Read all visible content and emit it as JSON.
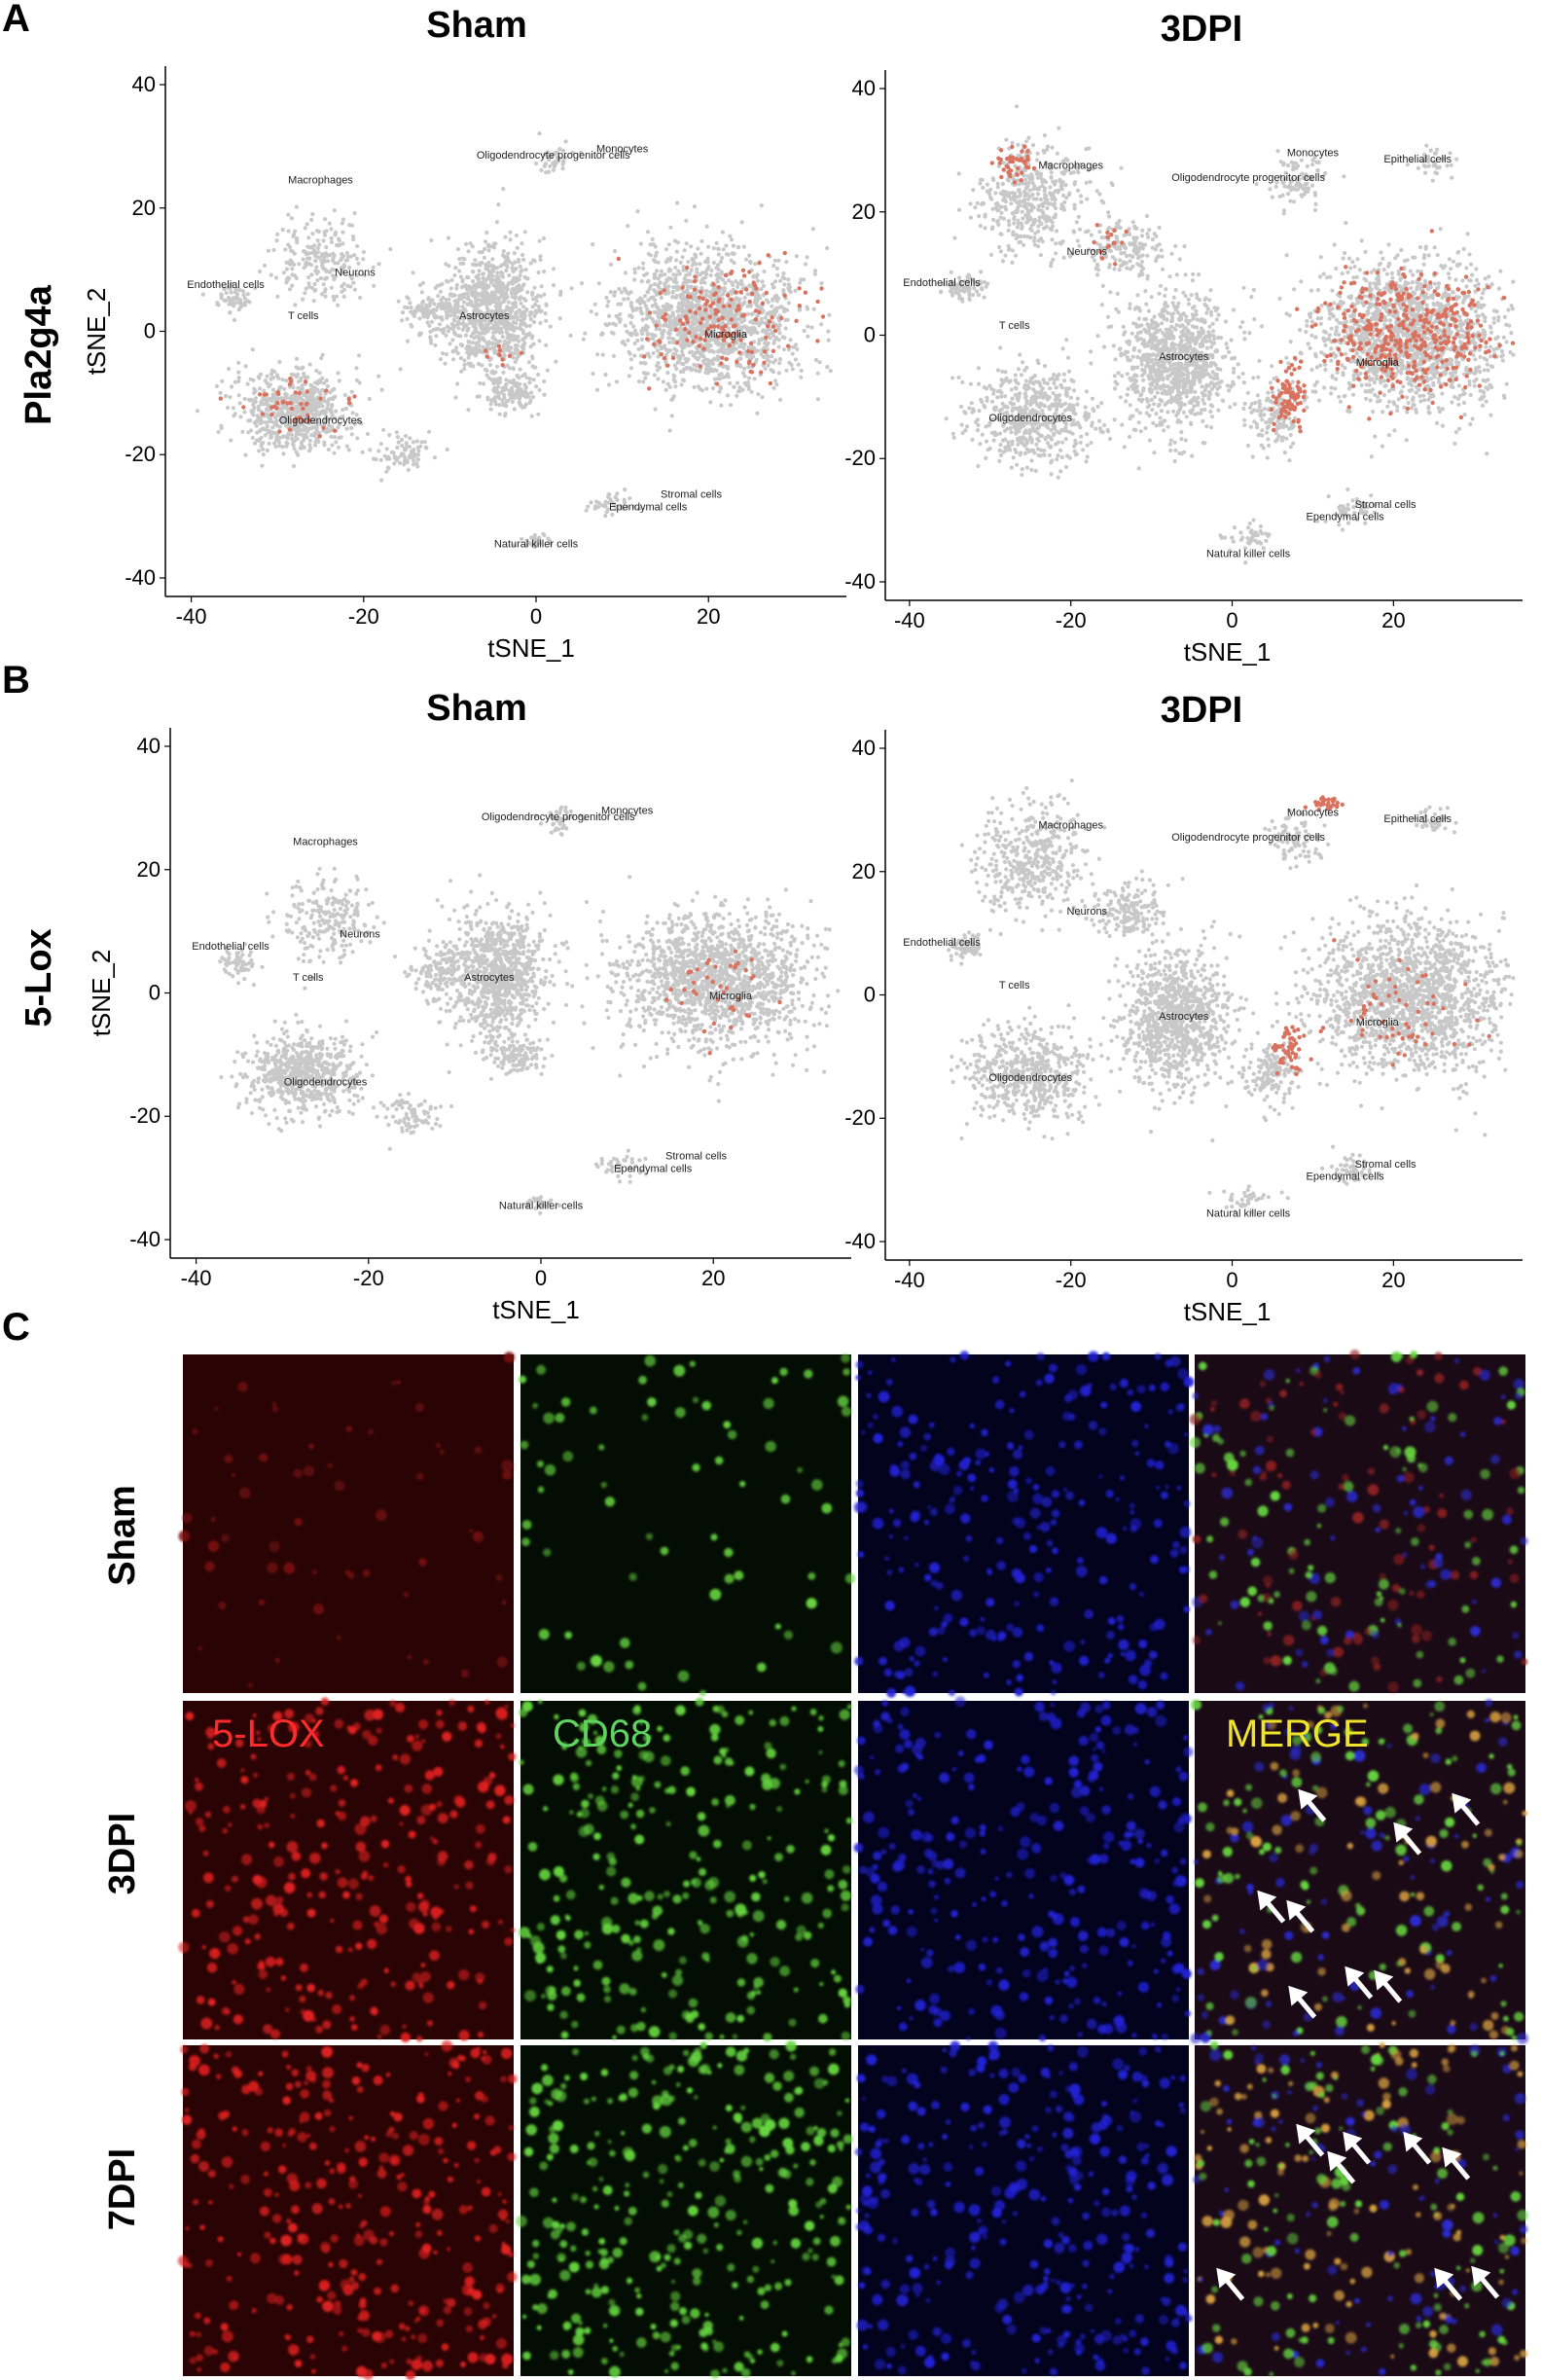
{
  "panels": {
    "A": "A",
    "B": "B",
    "C": "C"
  },
  "chart_data": [
    {
      "type": "scatter",
      "panel": "A",
      "row_label": "Pla2g4a",
      "condition": "Sham",
      "xlabel": "tSNE_1",
      "ylabel": "tSNE_2",
      "xlim": [
        -43,
        36
      ],
      "ylim": [
        -43,
        43
      ],
      "xticks": [
        -40,
        -20,
        0,
        20
      ],
      "yticks": [
        -40,
        -20,
        0,
        20,
        40
      ],
      "grid": false,
      "colors": {
        "background": "#c8c8c8",
        "expressing": "#d9735f"
      },
      "clusters": [
        {
          "name": "Monocytes",
          "x": 10,
          "y": 29
        },
        {
          "name": "Oligodendrocyte progenitor cells",
          "x": 2,
          "y": 28
        },
        {
          "name": "Macrophages",
          "x": -25,
          "y": 24
        },
        {
          "name": "Endothelial cells",
          "x": -36,
          "y": 7
        },
        {
          "name": "Neurons",
          "x": -21,
          "y": 9
        },
        {
          "name": "T cells",
          "x": -27,
          "y": 2
        },
        {
          "name": "Astrocytes",
          "x": -6,
          "y": 2
        },
        {
          "name": "Microglia",
          "x": 22,
          "y": -1
        },
        {
          "name": "Oligodendrocytes",
          "x": -25,
          "y": -15
        },
        {
          "name": "Stromal cells",
          "x": 18,
          "y": -27
        },
        {
          "name": "Ependymal cells",
          "x": 13,
          "y": -29
        },
        {
          "name": "Natural killer cells",
          "x": 0,
          "y": -35
        }
      ]
    },
    {
      "type": "scatter",
      "panel": "A",
      "row_label": "Pla2g4a",
      "condition": "3DPI",
      "xlabel": "tSNE_1",
      "ylabel": "",
      "xlim": [
        -43,
        36
      ],
      "ylim": [
        -43,
        43
      ],
      "xticks": [
        -40,
        -20,
        0,
        20
      ],
      "yticks": [
        -40,
        -20,
        0,
        20,
        40
      ],
      "grid": false,
      "colors": {
        "background": "#c8c8c8",
        "expressing": "#d9735f"
      },
      "clusters": [
        {
          "name": "Macrophages",
          "x": -20,
          "y": 27
        },
        {
          "name": "Monocytes",
          "x": 10,
          "y": 29
        },
        {
          "name": "Epithelial cells",
          "x": 23,
          "y": 28
        },
        {
          "name": "Oligodendrocyte progenitor cells",
          "x": 2,
          "y": 25
        },
        {
          "name": "Neurons",
          "x": -18,
          "y": 13
        },
        {
          "name": "Endothelial cells",
          "x": -36,
          "y": 8
        },
        {
          "name": "T cells",
          "x": -27,
          "y": 1
        },
        {
          "name": "Astrocytes",
          "x": -6,
          "y": -4
        },
        {
          "name": "Microglia",
          "x": 18,
          "y": -5
        },
        {
          "name": "Oligodendrocytes",
          "x": -25,
          "y": -14
        },
        {
          "name": "Stromal cells",
          "x": 19,
          "y": -28
        },
        {
          "name": "Ependymal cells",
          "x": 14,
          "y": -30
        },
        {
          "name": "Natural killer cells",
          "x": 2,
          "y": -36
        }
      ]
    },
    {
      "type": "scatter",
      "panel": "B",
      "row_label": "5-Lox",
      "condition": "Sham",
      "xlabel": "tSNE_1",
      "ylabel": "tSNE_2",
      "xlim": [
        -43,
        36
      ],
      "ylim": [
        -43,
        43
      ],
      "xticks": [
        -40,
        -20,
        0,
        20
      ],
      "yticks": [
        -40,
        -20,
        0,
        20,
        40
      ],
      "grid": false,
      "colors": {
        "background": "#c8c8c8",
        "expressing": "#d9735f"
      },
      "clusters": [
        {
          "name": "Monocytes",
          "x": 10,
          "y": 29
        },
        {
          "name": "Oligodendrocyte progenitor cells",
          "x": 2,
          "y": 28
        },
        {
          "name": "Macrophages",
          "x": -25,
          "y": 24
        },
        {
          "name": "Endothelial cells",
          "x": -36,
          "y": 7
        },
        {
          "name": "Neurons",
          "x": -21,
          "y": 9
        },
        {
          "name": "T cells",
          "x": -27,
          "y": 2
        },
        {
          "name": "Astrocytes",
          "x": -6,
          "y": 2
        },
        {
          "name": "Microglia",
          "x": 22,
          "y": -1
        },
        {
          "name": "Oligodendrocytes",
          "x": -25,
          "y": -15
        },
        {
          "name": "Stromal cells",
          "x": 18,
          "y": -27
        },
        {
          "name": "Ependymal cells",
          "x": 13,
          "y": -29
        },
        {
          "name": "Natural killer cells",
          "x": 0,
          "y": -35
        }
      ]
    },
    {
      "type": "scatter",
      "panel": "B",
      "row_label": "5-Lox",
      "condition": "3DPI",
      "xlabel": "tSNE_1",
      "ylabel": "",
      "xlim": [
        -43,
        36
      ],
      "ylim": [
        -43,
        43
      ],
      "xticks": [
        -40,
        -20,
        0,
        20
      ],
      "yticks": [
        -40,
        -20,
        0,
        20,
        40
      ],
      "grid": false,
      "colors": {
        "background": "#c8c8c8",
        "expressing": "#d9735f"
      },
      "clusters": [
        {
          "name": "Macrophages",
          "x": -20,
          "y": 27
        },
        {
          "name": "Monocytes",
          "x": 10,
          "y": 29
        },
        {
          "name": "Epithelial cells",
          "x": 23,
          "y": 28
        },
        {
          "name": "Oligodendrocyte progenitor cells",
          "x": 2,
          "y": 25
        },
        {
          "name": "Neurons",
          "x": -18,
          "y": 13
        },
        {
          "name": "Endothelial cells",
          "x": -36,
          "y": 8
        },
        {
          "name": "T cells",
          "x": -27,
          "y": 1
        },
        {
          "name": "Astrocytes",
          "x": -6,
          "y": -4
        },
        {
          "name": "Microglia",
          "x": 18,
          "y": -5
        },
        {
          "name": "Oligodendrocytes",
          "x": -25,
          "y": -14
        },
        {
          "name": "Stromal cells",
          "x": 19,
          "y": -28
        },
        {
          "name": "Ependymal cells",
          "x": 14,
          "y": -30
        },
        {
          "name": "Natural killer cells",
          "x": 2,
          "y": -36
        }
      ]
    }
  ],
  "microscopy": {
    "row_labels": [
      "Sham",
      "3DPI",
      "7DPI"
    ],
    "channel_labels": {
      "red": "5-LOX",
      "green": "CD68",
      "merge": "MERGE"
    },
    "colors": {
      "red": "#ff2a2a",
      "green": "#5fd35f",
      "merge": "#f0e42a",
      "arrow": "#ffffff"
    }
  }
}
